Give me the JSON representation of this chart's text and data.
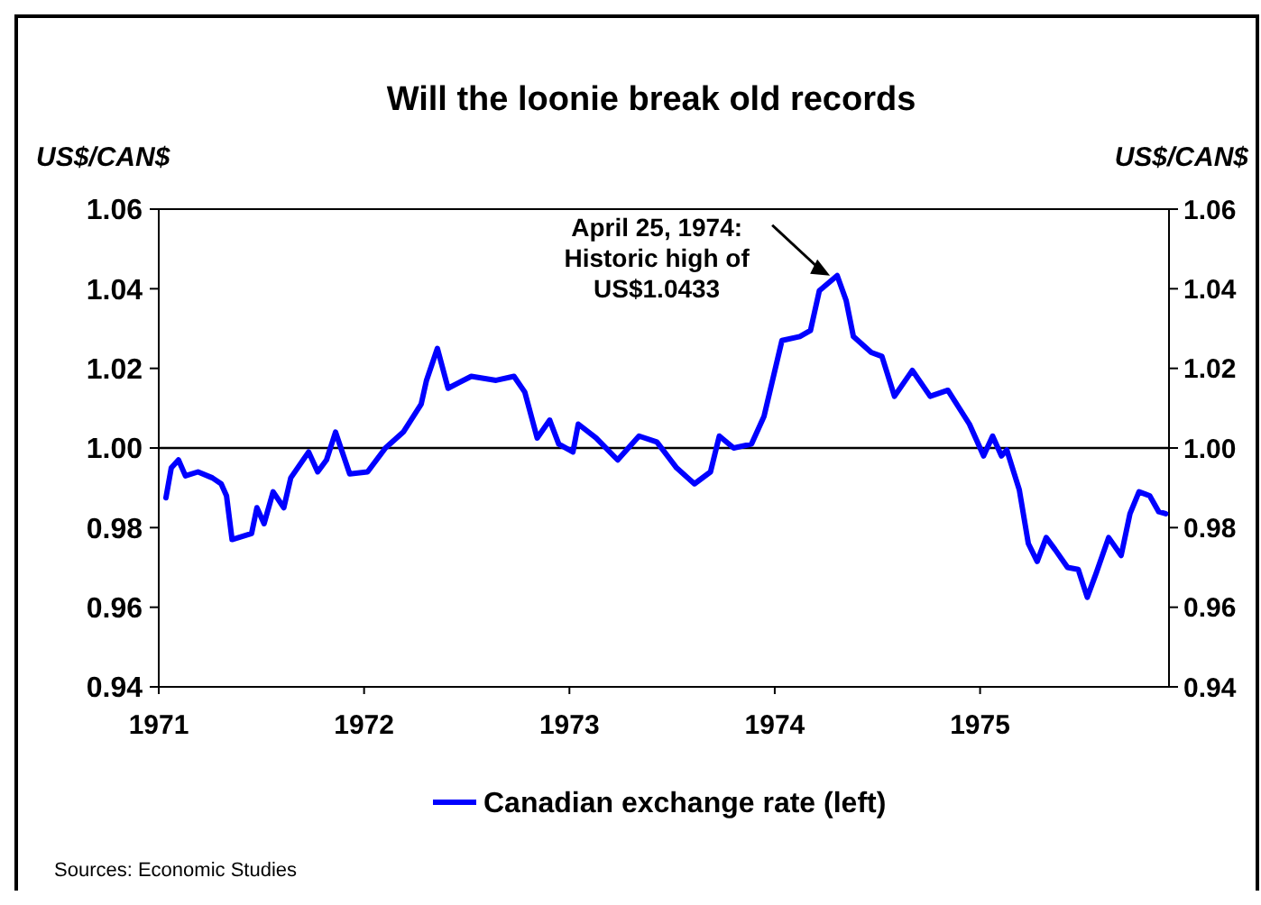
{
  "chart_data": {
    "type": "line",
    "title": "Will the loonie break old records",
    "ylabel": "US$/CAN$",
    "y2label": "US$/CAN$",
    "xlim": [
      1971,
      1975.92
    ],
    "xticks": [
      1971,
      1972,
      1973,
      1974,
      1975
    ],
    "ylim": [
      0.94,
      1.06
    ],
    "yticks": [
      {
        "value": 0.94,
        "label": "0.94"
      },
      {
        "value": 0.96,
        "label": "0.96"
      },
      {
        "value": 0.98,
        "label": "0.98"
      },
      {
        "value": 1,
        "label": "1.00"
      },
      {
        "value": 1.02,
        "label": "1.02"
      },
      {
        "value": 1.04,
        "label": "1.04"
      },
      {
        "value": 1.06,
        "label": "1.06"
      }
    ],
    "y2lim": [
      0.94,
      1.06
    ],
    "y2ticks": [
      {
        "value": 0.94,
        "label": "0.94"
      },
      {
        "value": 0.96,
        "label": "0.96"
      },
      {
        "value": 0.98,
        "label": "0.98"
      },
      {
        "value": 1,
        "label": "1.00"
      },
      {
        "value": 1.02,
        "label": "1.02"
      },
      {
        "value": 1.04,
        "label": "1.04"
      },
      {
        "value": 1.06,
        "label": "1.06"
      }
    ],
    "grid": false,
    "legend": "bottom",
    "marker": "none",
    "line_style": "solid",
    "ref_lines": [
      {
        "axis": "y",
        "value": 1,
        "color": "#000000"
      }
    ],
    "annotations": [
      {
        "text": "April 25, 1974:\nHistoric high of\nUS$1.0433",
        "x": 1974.304,
        "y": 1.0433
      },
      "Sources: Economic Studies"
    ],
    "series": [
      {
        "name": "Canadian exchange rate (left)",
        "color": "#0000ff",
        "x": [
          1971.035,
          1971.061,
          1971.096,
          1971.13,
          1971.191,
          1971.261,
          1971.304,
          1971.33,
          1971.357,
          1971.452,
          1971.478,
          1971.513,
          1971.557,
          1971.609,
          1971.643,
          1971.73,
          1971.774,
          1971.817,
          1971.861,
          1971.887,
          1971.93,
          1972.017,
          1972.104,
          1972.191,
          1972.278,
          1972.304,
          1972.357,
          1972.409,
          1972.522,
          1972.643,
          1972.73,
          1972.783,
          1972.843,
          1972.904,
          1972.948,
          1973.017,
          1973.043,
          1973.13,
          1973.235,
          1973.339,
          1973.426,
          1973.522,
          1973.609,
          1973.687,
          1973.73,
          1973.8,
          1973.887,
          1973.948,
          1974.035,
          1974.122,
          1974.174,
          1974.217,
          1974.304,
          1974.348,
          1974.383,
          1974.47,
          1974.522,
          1974.583,
          1974.67,
          1974.757,
          1974.843,
          1974.948,
          1975.017,
          1975.061,
          1975.104,
          1975.13,
          1975.191,
          1975.235,
          1975.278,
          1975.322,
          1975.365,
          1975.426,
          1975.478,
          1975.522,
          1975.565,
          1975.626,
          1975.687,
          1975.73,
          1975.774,
          1975.826,
          1975.87,
          1975.904
        ],
        "values": [
          0.9875,
          0.995,
          0.997,
          0.993,
          0.994,
          0.9925,
          0.991,
          0.988,
          0.977,
          0.9785,
          0.985,
          0.981,
          0.989,
          0.985,
          0.9925,
          0.999,
          0.994,
          0.997,
          1.004,
          1.0,
          0.9935,
          0.994,
          1.0,
          1.004,
          1.011,
          1.017,
          1.025,
          1.015,
          1.018,
          1.017,
          1.018,
          1.014,
          1.0025,
          1.007,
          1.001,
          0.999,
          1.006,
          1.0025,
          0.997,
          1.003,
          1.0015,
          0.995,
          0.991,
          0.994,
          1.003,
          1.0,
          1.001,
          1.008,
          1.027,
          1.028,
          1.0295,
          1.0395,
          1.0433,
          1.037,
          1.028,
          1.024,
          1.023,
          1.013,
          1.0195,
          1.013,
          1.0145,
          1.006,
          0.998,
          1.003,
          0.998,
          0.9995,
          0.9895,
          0.976,
          0.9715,
          0.9775,
          0.9745,
          0.97,
          0.9695,
          0.9625,
          0.9685,
          0.9775,
          0.973,
          0.9835,
          0.989,
          0.988,
          0.984,
          0.9835
        ]
      }
    ]
  }
}
